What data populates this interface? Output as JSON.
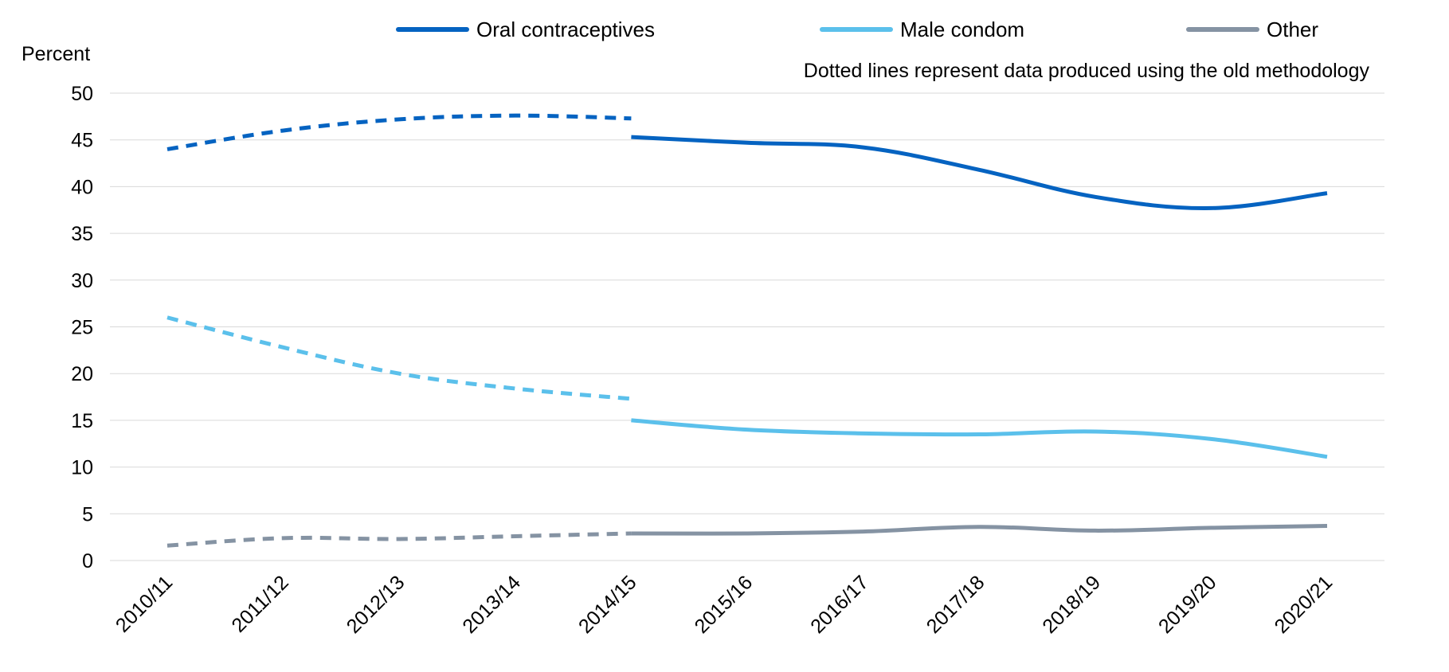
{
  "chart_data": {
    "type": "line",
    "ylabel": "Percent",
    "annotation": "Dotted lines represent data produced using the old methodology",
    "ylim": [
      0,
      50
    ],
    "yticks": [
      0,
      5,
      10,
      15,
      20,
      25,
      30,
      35,
      40,
      45,
      50
    ],
    "categories": [
      "2010/11",
      "2011/12",
      "2012/13",
      "2013/14",
      "2014/15",
      "2015/16",
      "2016/17",
      "2017/18",
      "2018/19",
      "2019/20",
      "2020/21"
    ],
    "grid": "horizontal",
    "legend_position": "top",
    "series": [
      {
        "name": "Oral contraceptives",
        "color": "#0563C1",
        "old_methodology": [
          44.0,
          46.0,
          47.2,
          47.6,
          47.3,
          null,
          null,
          null,
          null,
          null,
          null
        ],
        "new_methodology": [
          null,
          null,
          null,
          null,
          45.3,
          44.7,
          44.2,
          41.8,
          38.9,
          37.7,
          39.3
        ]
      },
      {
        "name": "Male condom",
        "color": "#5BC0EB",
        "old_methodology": [
          26.0,
          22.8,
          20.0,
          18.4,
          17.3,
          null,
          null,
          null,
          null,
          null,
          null
        ],
        "new_methodology": [
          null,
          null,
          null,
          null,
          15.0,
          14.0,
          13.6,
          13.5,
          13.8,
          13.0,
          11.1
        ]
      },
      {
        "name": "Other",
        "color": "#8593A3",
        "old_methodology": [
          1.6,
          2.4,
          2.3,
          2.6,
          2.9,
          null,
          null,
          null,
          null,
          null,
          null
        ],
        "new_methodology": [
          null,
          null,
          null,
          null,
          2.9,
          2.9,
          3.1,
          3.6,
          3.2,
          3.5,
          3.7
        ]
      }
    ]
  }
}
